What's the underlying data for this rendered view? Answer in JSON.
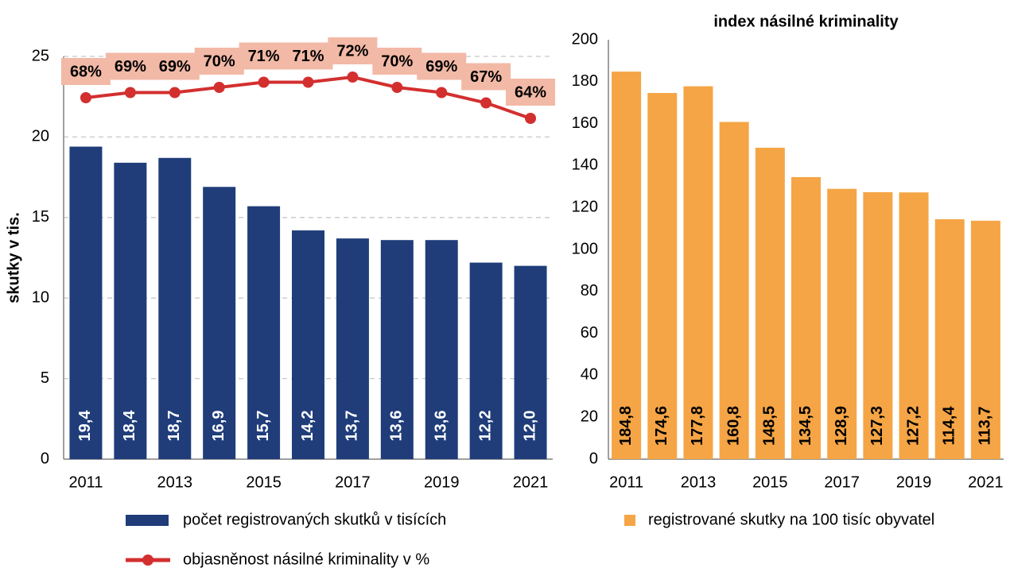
{
  "chart_data": [
    {
      "type": "bar_line",
      "y_label": "skutky v tis.",
      "categories": [
        "2011",
        null,
        "2013",
        null,
        "2015",
        null,
        "2017",
        null,
        "2019",
        null,
        "2021"
      ],
      "ylim": [
        0,
        25
      ],
      "yticks": [
        0,
        5,
        10,
        15,
        20,
        25
      ],
      "y2lim": [
        -2,
        76
      ],
      "grid": true,
      "series": [
        {
          "name": "počet registrovaných skutků v tisících",
          "color": "#203d7a",
          "values": [
            19.4,
            18.4,
            18.7,
            16.9,
            15.7,
            14.2,
            13.7,
            13.6,
            13.6,
            12.2,
            12.0
          ],
          "value_labels": [
            "19,4",
            "18,4",
            "18,7",
            "16,9",
            "15,7",
            "14,2",
            "13,7",
            "13,6",
            "13,6",
            "12,2",
            "12,0"
          ]
        },
        {
          "name": "objasněnost násilné kriminality v %",
          "color": "#d32f2f",
          "axis": "y2",
          "values": [
            68,
            69,
            69,
            70,
            71,
            71,
            72,
            70,
            69,
            67,
            64
          ],
          "value_labels": [
            "68%",
            "69%",
            "69%",
            "70%",
            "71%",
            "71%",
            "72%",
            "70%",
            "69%",
            "67%",
            "64%"
          ]
        }
      ]
    },
    {
      "type": "bar",
      "title": "index násilné kriminality",
      "categories": [
        "2011",
        null,
        "2013",
        null,
        "2015",
        null,
        "2017",
        null,
        "2019",
        null,
        "2021"
      ],
      "ylim": [
        0,
        200
      ],
      "yticks": [
        0,
        20,
        40,
        60,
        80,
        100,
        120,
        140,
        160,
        180,
        200
      ],
      "grid": false,
      "series": [
        {
          "name": "registrované skutky na 100 tisíc obyvatel",
          "color": "#f5a545",
          "values": [
            184.8,
            174.6,
            177.8,
            160.8,
            148.5,
            134.5,
            128.9,
            127.3,
            127.2,
            114.4,
            113.7
          ],
          "value_labels": [
            "184,8",
            "174,6",
            "177,8",
            "160,8",
            "148,5",
            "134,5",
            "128,9",
            "127,3",
            "127,2",
            "114,4",
            "113,7"
          ]
        }
      ]
    }
  ]
}
